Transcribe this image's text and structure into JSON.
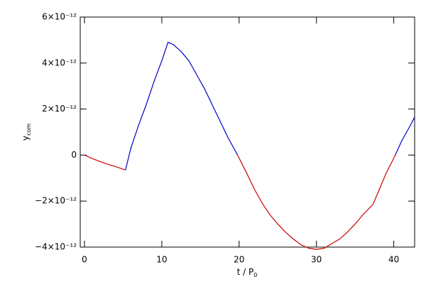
{
  "chart_data": {
    "type": "line",
    "x_label": {
      "main": "t / P",
      "sub": "0"
    },
    "y_label": {
      "main": "y",
      "sub": "com"
    },
    "xlim": [
      -0.55,
      42.7
    ],
    "xticks": [
      0,
      10,
      20,
      30,
      40
    ],
    "ylim": [
      -4e-12,
      6e-12
    ],
    "yticks": [
      {
        "value": -4e-12,
        "label": "−4×10⁻¹²"
      },
      {
        "value": -2e-12,
        "label": "−2×10⁻¹²"
      },
      0,
      {
        "value": 2e-12,
        "label": "2×10⁻¹²"
      },
      {
        "value": 4e-12,
        "label": "4×10⁻¹²"
      },
      {
        "value": 6e-12,
        "label": "6×10⁻¹²"
      }
    ],
    "series": [
      {
        "color": "#cc0000",
        "x": [
          0,
          1,
          2,
          3,
          4,
          5.3
        ],
        "values": [
          0,
          -1.5e-13,
          -2.8e-13,
          -4e-13,
          -5e-13,
          -6.5e-13
        ]
      },
      {
        "color": "#0000cc",
        "x": [
          5.3,
          6,
          7,
          8,
          9,
          10,
          10.8,
          11.5,
          12.5,
          13.5,
          14.5,
          15.5,
          16.5,
          17.5,
          18.5,
          19.8
        ],
        "values": [
          -6.5e-13,
          3e-13,
          1.3e-12,
          2.2e-12,
          3.2e-12,
          4.1e-12,
          4.9e-12,
          4.8e-12,
          4.5e-12,
          4.1e-12,
          3.5e-12,
          2.9e-12,
          2.2e-12,
          1.5e-12,
          8e-13,
          0
        ]
      },
      {
        "color": "#cc0000",
        "x": [
          19.8,
          21,
          22,
          23,
          24,
          25,
          26,
          27,
          28,
          29,
          30,
          31,
          32,
          33,
          34,
          35,
          36,
          37.3,
          38,
          39,
          40.2
        ],
        "values": [
          0,
          -8e-13,
          -1.5e-12,
          -2.1e-12,
          -2.6e-12,
          -3e-12,
          -3.35e-12,
          -3.65e-12,
          -3.9e-12,
          -4.05e-12,
          -4.1e-12,
          -4.05e-12,
          -3.85e-12,
          -3.65e-12,
          -3.35e-12,
          -3e-12,
          -2.6e-12,
          -2.15e-12,
          -1.6e-12,
          -8e-13,
          0
        ]
      },
      {
        "color": "#0000cc",
        "x": [
          40.2,
          41,
          42,
          42.7
        ],
        "values": [
          0,
          6e-13,
          1.2e-12,
          1.65e-12
        ]
      }
    ]
  }
}
